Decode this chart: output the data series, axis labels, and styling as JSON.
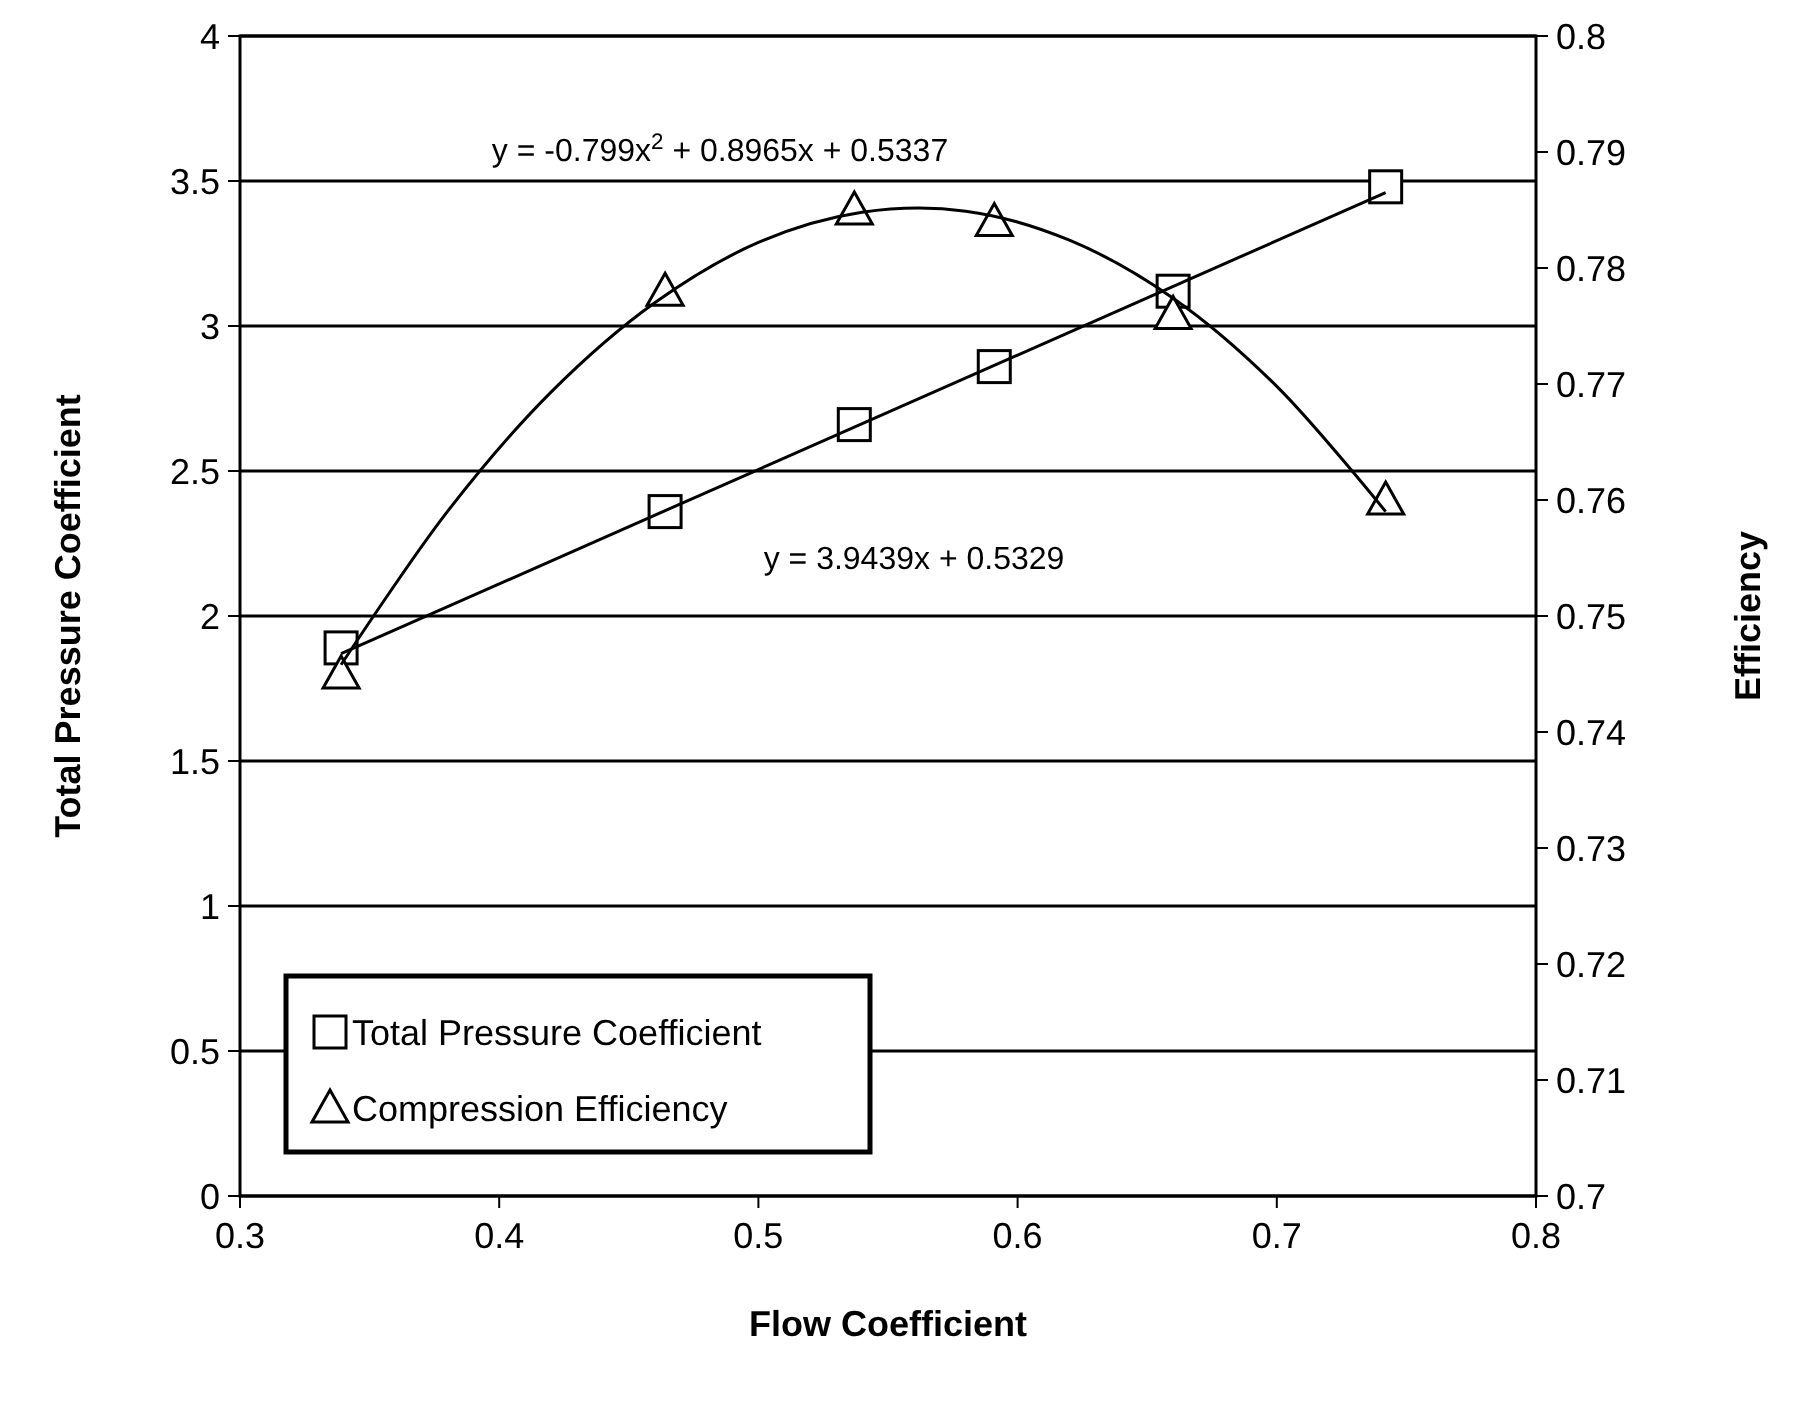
{
  "chart_data": {
    "type": "scatter",
    "xlabel": "Flow Coefficient",
    "ylabel": "Total Pressure Coefficient",
    "y2label": "Efficiency",
    "xlim": [
      0.3,
      0.8
    ],
    "xticks": [
      0.3,
      0.4,
      0.5,
      0.6,
      0.7,
      0.8
    ],
    "ylim": [
      0,
      4
    ],
    "yticks": [
      0,
      0.5,
      1,
      1.5,
      2,
      2.5,
      3,
      3.5,
      4
    ],
    "y2lim": [
      0.7,
      0.8
    ],
    "y2ticks": [
      0.7,
      0.71,
      0.72,
      0.73,
      0.74,
      0.75,
      0.76,
      0.77,
      0.78,
      0.79,
      0.8
    ],
    "grid": "y",
    "legend": "bottom left",
    "series": [
      {
        "name": "Total Pressure Coefficient",
        "marker": "square",
        "color": "#000000",
        "x": [
          0.339,
          0.464,
          0.537,
          0.591,
          0.66,
          0.742
        ],
        "values": [
          1.89,
          2.36,
          2.66,
          2.86,
          3.12,
          3.48
        ]
      },
      {
        "name": "Compression Efficiency",
        "marker": "triangle",
        "axis": "y2",
        "color": "#000000",
        "x": [
          0.339,
          0.464,
          0.537,
          0.591,
          0.66,
          0.742
        ],
        "values": [
          0.745,
          0.778,
          0.785,
          0.784,
          0.776,
          0.76
        ]
      },
      {
        "type": "line",
        "marker": "none",
        "color": "#000000",
        "x": [
          0.339,
          0.742
        ],
        "values": [
          1.87,
          3.46
        ]
      },
      {
        "type": "line",
        "marker": "none",
        "axis": "y2",
        "color": "#000000",
        "x": [
          0.339,
          0.38,
          0.42,
          0.46,
          0.5,
          0.54,
          0.58,
          0.62,
          0.66,
          0.7,
          0.742
        ],
        "values": [
          0.7458,
          0.759,
          0.7693,
          0.777,
          0.7822,
          0.7848,
          0.7849,
          0.7824,
          0.7774,
          0.7698,
          0.759
        ]
      }
    ],
    "annotations": [
      "y = -0.799x$^{2}$ + 0.8965x + 0.5337",
      "y = 3.9439x + 0.5329"
    ]
  }
}
